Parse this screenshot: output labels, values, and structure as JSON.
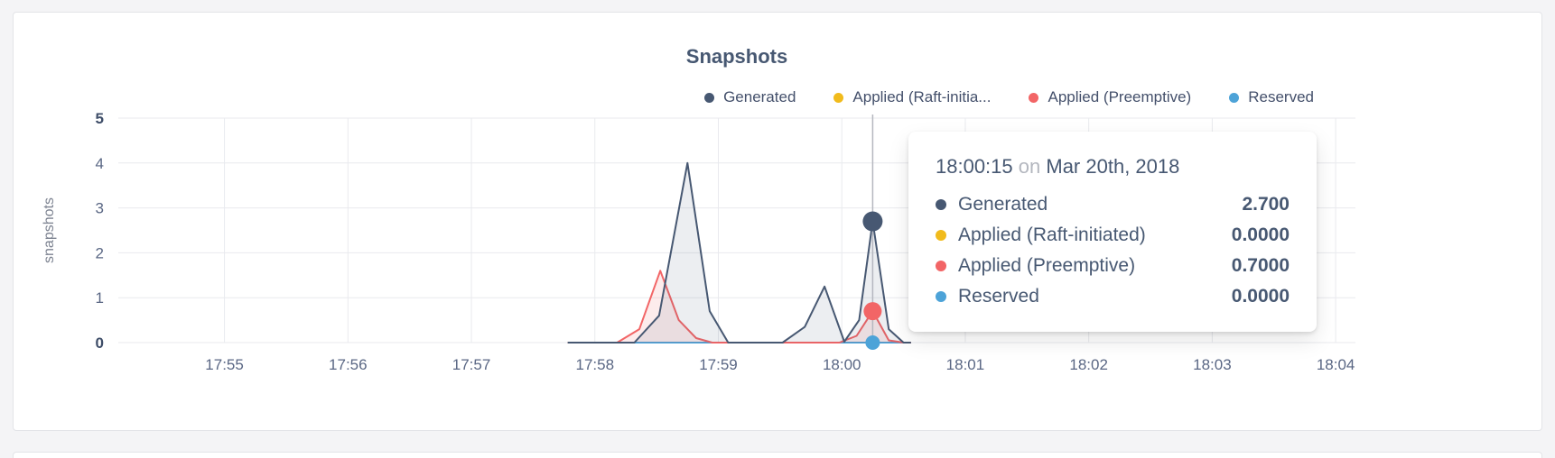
{
  "page": {
    "background": "#f4f4f6"
  },
  "card": {
    "title": "Snapshots"
  },
  "legend": {
    "items": [
      {
        "label": "Generated",
        "color": "#475872"
      },
      {
        "label": "Applied (Raft-initia...",
        "color": "#f1bb1c"
      },
      {
        "label": "Applied (Preemptive)",
        "color": "#f26566"
      },
      {
        "label": "Reserved",
        "color": "#4da3d8"
      }
    ]
  },
  "tooltip": {
    "time": "18:00:15",
    "conjunction": "on",
    "date": "Mar 20th, 2018",
    "rows": [
      {
        "label": "Generated",
        "value": "2.700",
        "color": "#475872"
      },
      {
        "label": "Applied (Raft-initiated)",
        "value": "0.0000",
        "color": "#f1bb1c"
      },
      {
        "label": "Applied (Preemptive)",
        "value": "0.7000",
        "color": "#f26566"
      },
      {
        "label": "Reserved",
        "value": "0.0000",
        "color": "#4da3d8"
      }
    ]
  },
  "chart_data": {
    "type": "area",
    "title": "Snapshots",
    "xlabel": "",
    "ylabel": "snapshots",
    "ylim": [
      0,
      5
    ],
    "yticks": [
      0,
      1,
      2,
      3,
      4,
      5
    ],
    "xticks": [
      "17:55",
      "17:56",
      "17:57",
      "17:58",
      "17:59",
      "18:00",
      "18:01",
      "18:02",
      "18:03",
      "18:04"
    ],
    "x_unit": "minutes since 17:55",
    "xlim": [
      -0.86,
      9.16
    ],
    "grid": true,
    "grid_color": "#e9eaee",
    "legend_position": "top-right",
    "crosshair": {
      "x": 5.25,
      "time": "18:00:15",
      "line_color": "#b5b7bf",
      "points": [
        {
          "series": "Applied (Raft-initiated)",
          "value": 0,
          "color": "#f1bb1c",
          "radius": 7
        },
        {
          "series": "Reserved",
          "value": 0,
          "color": "#4da3d8",
          "radius": 8
        },
        {
          "series": "Applied (Preemptive)",
          "value": 0.7,
          "color": "#f26566",
          "radius": 10
        },
        {
          "series": "Generated",
          "value": 2.7,
          "color": "#475872",
          "radius": 11
        }
      ]
    },
    "series": [
      {
        "name": "Applied (Raft-initiated)",
        "color": "#f1bb1c",
        "fill_opacity": 0,
        "points": [
          [
            2.78,
            0
          ],
          [
            5.56,
            0
          ]
        ]
      },
      {
        "name": "Reserved",
        "color": "#4da3d8",
        "fill_opacity": 0,
        "points": [
          [
            2.78,
            0
          ],
          [
            5.56,
            0
          ]
        ]
      },
      {
        "name": "Applied (Preemptive)",
        "color": "#f26566",
        "fill_opacity": 0.12,
        "points": [
          [
            2.78,
            0
          ],
          [
            3.18,
            0
          ],
          [
            3.36,
            0.3
          ],
          [
            3.53,
            1.6
          ],
          [
            3.68,
            0.5
          ],
          [
            3.82,
            0.1
          ],
          [
            3.95,
            0
          ],
          [
            4.98,
            0
          ],
          [
            5.12,
            0.15
          ],
          [
            5.25,
            0.7
          ],
          [
            5.38,
            0.05
          ],
          [
            5.5,
            0
          ],
          [
            5.56,
            0
          ]
        ]
      },
      {
        "name": "Generated",
        "color": "#475872",
        "fill_opacity": 0.1,
        "points": [
          [
            2.78,
            0
          ],
          [
            3.32,
            0
          ],
          [
            3.52,
            0.6
          ],
          [
            3.75,
            4.0
          ],
          [
            3.93,
            0.7
          ],
          [
            4.08,
            0
          ],
          [
            4.52,
            0
          ],
          [
            4.7,
            0.35
          ],
          [
            4.86,
            1.25
          ],
          [
            5.02,
            0.02
          ],
          [
            5.14,
            0.5
          ],
          [
            5.25,
            2.7
          ],
          [
            5.38,
            0.3
          ],
          [
            5.5,
            0
          ],
          [
            5.56,
            0
          ]
        ]
      }
    ]
  }
}
